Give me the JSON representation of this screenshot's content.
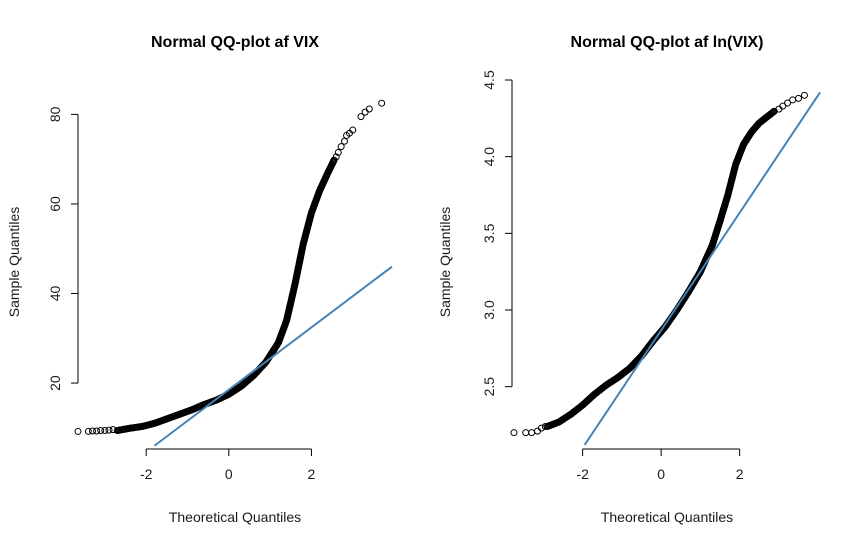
{
  "chart_data": [
    {
      "type": "scatter",
      "title": "Normal QQ-plot af VIX",
      "xlabel": "Theoretical Quantiles",
      "ylabel": "Sample Quantiles",
      "xlim": [
        -3.65,
        3.95
      ],
      "ylim": [
        5.5,
        85
      ],
      "xticks": [
        -2,
        0,
        2
      ],
      "yticks": [
        20,
        40,
        60,
        80
      ],
      "grid": false,
      "legend": "none",
      "point_color": "#000000",
      "line_color": "#4682B4",
      "qq_line": {
        "x": [
          -1.8,
          3.95
        ],
        "y": [
          6.0,
          46.0
        ]
      },
      "curve": [
        [
          -2.7,
          9.4
        ],
        [
          -2.4,
          9.9
        ],
        [
          -2.1,
          10.3
        ],
        [
          -1.8,
          11.0
        ],
        [
          -1.5,
          12.0
        ],
        [
          -1.2,
          13.0
        ],
        [
          -0.9,
          14.0
        ],
        [
          -0.6,
          15.2
        ],
        [
          -0.3,
          16.2
        ],
        [
          0.0,
          17.5
        ],
        [
          0.3,
          19.3
        ],
        [
          0.6,
          21.7
        ],
        [
          0.9,
          24.7
        ],
        [
          1.2,
          29.0
        ],
        [
          1.4,
          34.0
        ],
        [
          1.6,
          42.0
        ],
        [
          1.8,
          51.0
        ],
        [
          2.0,
          58.0
        ],
        [
          2.2,
          63.0
        ],
        [
          2.4,
          67.0
        ],
        [
          2.56,
          70.0
        ]
      ],
      "tail_points": [
        [
          -3.65,
          9.2
        ],
        [
          -3.4,
          9.2
        ],
        [
          -3.3,
          9.3
        ],
        [
          -3.2,
          9.3
        ],
        [
          -3.1,
          9.4
        ],
        [
          -3.0,
          9.4
        ],
        [
          -2.9,
          9.5
        ],
        [
          -2.8,
          9.6
        ],
        [
          2.6,
          70.5
        ],
        [
          2.65,
          71.5
        ],
        [
          2.72,
          72.8
        ],
        [
          2.8,
          74.0
        ],
        [
          2.85,
          75.3
        ],
        [
          2.92,
          75.8
        ],
        [
          3.0,
          76.5
        ],
        [
          3.2,
          79.5
        ],
        [
          3.3,
          80.5
        ],
        [
          3.4,
          81.2
        ],
        [
          3.7,
          82.5
        ]
      ]
    },
    {
      "type": "scatter",
      "title": "Normal QQ-plot af ln(VIX)",
      "xlabel": "Theoretical Quantiles",
      "ylabel": "Sample Quantiles",
      "xlim": [
        -3.8,
        4.2
      ],
      "ylim": [
        2.1,
        4.5
      ],
      "xticks": [
        -2,
        0,
        2
      ],
      "yticks": [
        2.5,
        3.0,
        3.5,
        4.0,
        4.5
      ],
      "grid": false,
      "legend": "none",
      "point_color": "#000000",
      "line_color": "#4682B4",
      "qq_line": {
        "x": [
          -1.95,
          4.05
        ],
        "y": [
          2.12,
          4.42
        ]
      },
      "curve": [
        [
          -2.9,
          2.24
        ],
        [
          -2.6,
          2.27
        ],
        [
          -2.3,
          2.32
        ],
        [
          -2.0,
          2.38
        ],
        [
          -1.7,
          2.45
        ],
        [
          -1.4,
          2.51
        ],
        [
          -1.1,
          2.56
        ],
        [
          -0.8,
          2.62
        ],
        [
          -0.5,
          2.7
        ],
        [
          -0.2,
          2.8
        ],
        [
          0.1,
          2.89
        ],
        [
          0.4,
          3.0
        ],
        [
          0.7,
          3.12
        ],
        [
          1.0,
          3.25
        ],
        [
          1.3,
          3.42
        ],
        [
          1.5,
          3.58
        ],
        [
          1.7,
          3.75
        ],
        [
          1.9,
          3.95
        ],
        [
          2.1,
          4.08
        ],
        [
          2.3,
          4.16
        ],
        [
          2.5,
          4.22
        ],
        [
          2.7,
          4.26
        ],
        [
          2.9,
          4.3
        ]
      ],
      "tail_points": [
        [
          -3.75,
          2.2
        ],
        [
          -3.45,
          2.2
        ],
        [
          -3.3,
          2.2
        ],
        [
          -3.15,
          2.21
        ],
        [
          -3.05,
          2.23
        ],
        [
          -2.95,
          2.24
        ],
        [
          3.0,
          4.31
        ],
        [
          3.1,
          4.33
        ],
        [
          3.22,
          4.35
        ],
        [
          3.35,
          4.37
        ],
        [
          3.5,
          4.38
        ],
        [
          3.65,
          4.4
        ]
      ]
    }
  ]
}
